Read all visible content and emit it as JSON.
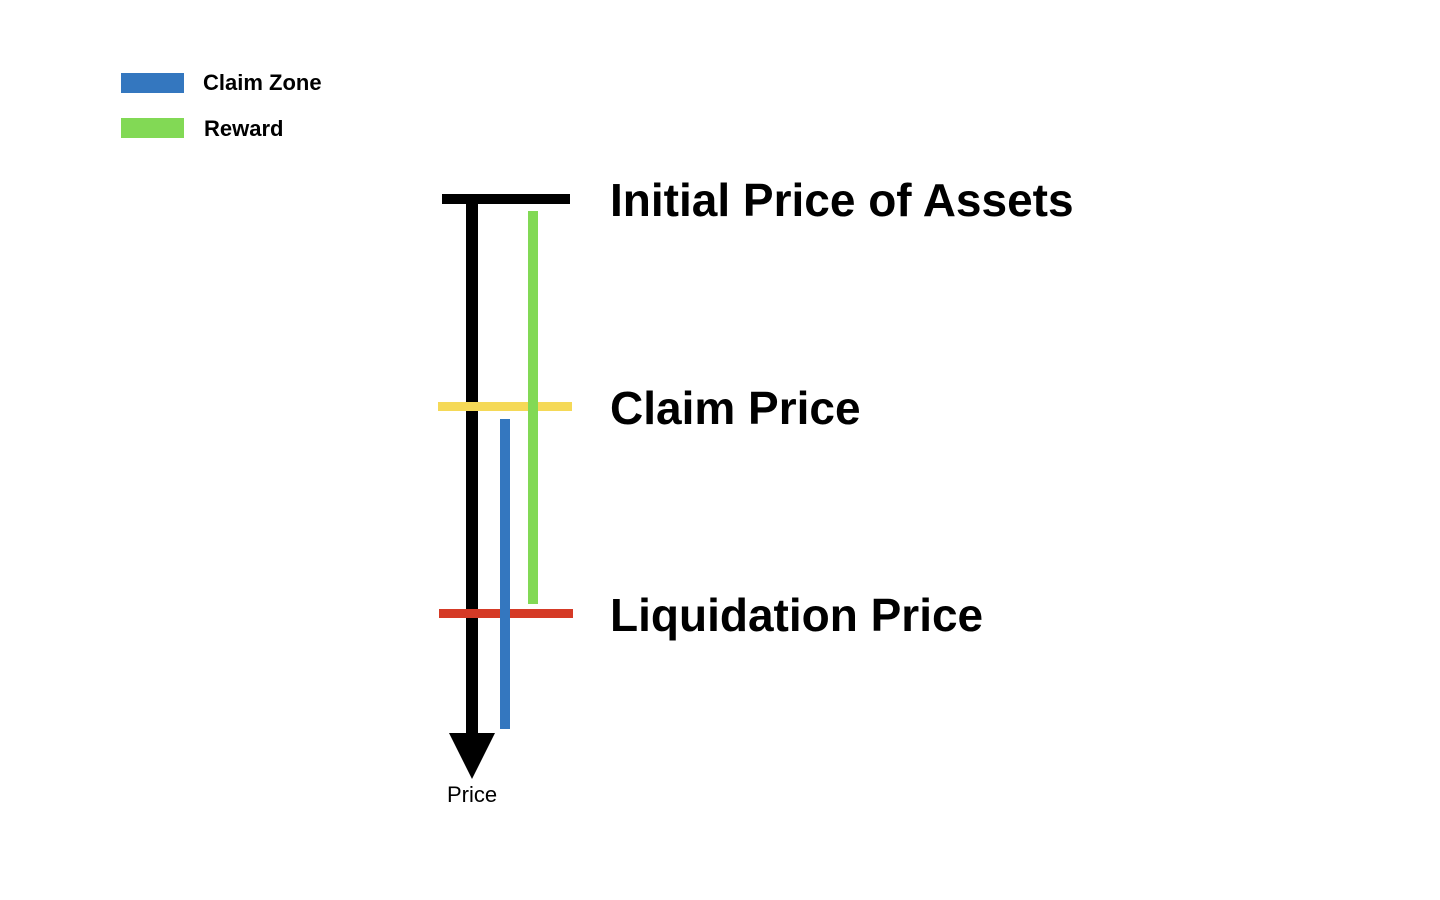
{
  "legend": {
    "items": [
      {
        "label": "Claim Zone",
        "color": "#3477bf"
      },
      {
        "label": "Reward",
        "color": "#82d955"
      }
    ]
  },
  "levels": {
    "initial": {
      "label": "Initial Price of Assets",
      "color": "#000000"
    },
    "claim": {
      "label": "Claim Price",
      "color": "#f5d957"
    },
    "liquidation": {
      "label": "Liquidation Price",
      "color": "#d53a26"
    }
  },
  "axis": {
    "label": "Price",
    "color": "#000000"
  }
}
